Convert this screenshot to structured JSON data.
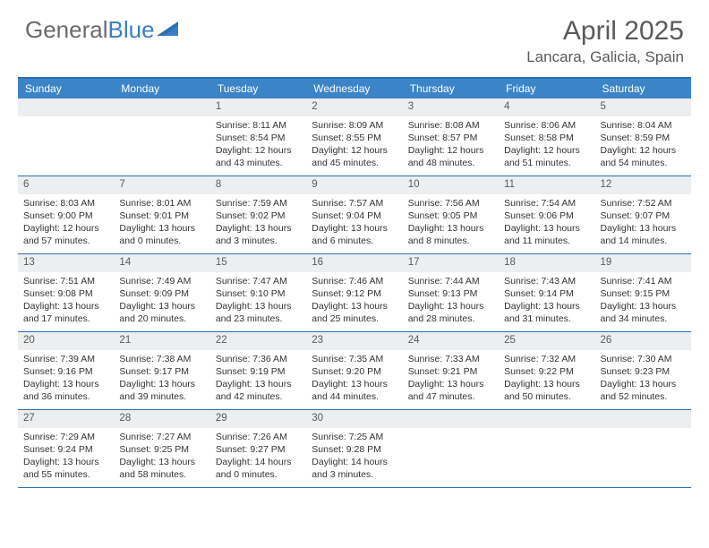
{
  "logo": {
    "part1": "General",
    "part2": "Blue"
  },
  "title": "April 2025",
  "location": "Lancara, Galicia, Spain",
  "colors": {
    "header_bg": "#3b84c8",
    "border": "#2a6fb5",
    "daynum_bg": "#eceeef",
    "text": "#333333",
    "logo_gray": "#6a6a6a",
    "logo_blue": "#3a7fc4"
  },
  "weekdays": [
    "Sunday",
    "Monday",
    "Tuesday",
    "Wednesday",
    "Thursday",
    "Friday",
    "Saturday"
  ],
  "weeks": [
    [
      null,
      null,
      {
        "n": "1",
        "sr": "8:11 AM",
        "ss": "8:54 PM",
        "dl": "12 hours and 43 minutes."
      },
      {
        "n": "2",
        "sr": "8:09 AM",
        "ss": "8:55 PM",
        "dl": "12 hours and 45 minutes."
      },
      {
        "n": "3",
        "sr": "8:08 AM",
        "ss": "8:57 PM",
        "dl": "12 hours and 48 minutes."
      },
      {
        "n": "4",
        "sr": "8:06 AM",
        "ss": "8:58 PM",
        "dl": "12 hours and 51 minutes."
      },
      {
        "n": "5",
        "sr": "8:04 AM",
        "ss": "8:59 PM",
        "dl": "12 hours and 54 minutes."
      }
    ],
    [
      {
        "n": "6",
        "sr": "8:03 AM",
        "ss": "9:00 PM",
        "dl": "12 hours and 57 minutes."
      },
      {
        "n": "7",
        "sr": "8:01 AM",
        "ss": "9:01 PM",
        "dl": "13 hours and 0 minutes."
      },
      {
        "n": "8",
        "sr": "7:59 AM",
        "ss": "9:02 PM",
        "dl": "13 hours and 3 minutes."
      },
      {
        "n": "9",
        "sr": "7:57 AM",
        "ss": "9:04 PM",
        "dl": "13 hours and 6 minutes."
      },
      {
        "n": "10",
        "sr": "7:56 AM",
        "ss": "9:05 PM",
        "dl": "13 hours and 8 minutes."
      },
      {
        "n": "11",
        "sr": "7:54 AM",
        "ss": "9:06 PM",
        "dl": "13 hours and 11 minutes."
      },
      {
        "n": "12",
        "sr": "7:52 AM",
        "ss": "9:07 PM",
        "dl": "13 hours and 14 minutes."
      }
    ],
    [
      {
        "n": "13",
        "sr": "7:51 AM",
        "ss": "9:08 PM",
        "dl": "13 hours and 17 minutes."
      },
      {
        "n": "14",
        "sr": "7:49 AM",
        "ss": "9:09 PM",
        "dl": "13 hours and 20 minutes."
      },
      {
        "n": "15",
        "sr": "7:47 AM",
        "ss": "9:10 PM",
        "dl": "13 hours and 23 minutes."
      },
      {
        "n": "16",
        "sr": "7:46 AM",
        "ss": "9:12 PM",
        "dl": "13 hours and 25 minutes."
      },
      {
        "n": "17",
        "sr": "7:44 AM",
        "ss": "9:13 PM",
        "dl": "13 hours and 28 minutes."
      },
      {
        "n": "18",
        "sr": "7:43 AM",
        "ss": "9:14 PM",
        "dl": "13 hours and 31 minutes."
      },
      {
        "n": "19",
        "sr": "7:41 AM",
        "ss": "9:15 PM",
        "dl": "13 hours and 34 minutes."
      }
    ],
    [
      {
        "n": "20",
        "sr": "7:39 AM",
        "ss": "9:16 PM",
        "dl": "13 hours and 36 minutes."
      },
      {
        "n": "21",
        "sr": "7:38 AM",
        "ss": "9:17 PM",
        "dl": "13 hours and 39 minutes."
      },
      {
        "n": "22",
        "sr": "7:36 AM",
        "ss": "9:19 PM",
        "dl": "13 hours and 42 minutes."
      },
      {
        "n": "23",
        "sr": "7:35 AM",
        "ss": "9:20 PM",
        "dl": "13 hours and 44 minutes."
      },
      {
        "n": "24",
        "sr": "7:33 AM",
        "ss": "9:21 PM",
        "dl": "13 hours and 47 minutes."
      },
      {
        "n": "25",
        "sr": "7:32 AM",
        "ss": "9:22 PM",
        "dl": "13 hours and 50 minutes."
      },
      {
        "n": "26",
        "sr": "7:30 AM",
        "ss": "9:23 PM",
        "dl": "13 hours and 52 minutes."
      }
    ],
    [
      {
        "n": "27",
        "sr": "7:29 AM",
        "ss": "9:24 PM",
        "dl": "13 hours and 55 minutes."
      },
      {
        "n": "28",
        "sr": "7:27 AM",
        "ss": "9:25 PM",
        "dl": "13 hours and 58 minutes."
      },
      {
        "n": "29",
        "sr": "7:26 AM",
        "ss": "9:27 PM",
        "dl": "14 hours and 0 minutes."
      },
      {
        "n": "30",
        "sr": "7:25 AM",
        "ss": "9:28 PM",
        "dl": "14 hours and 3 minutes."
      },
      null,
      null,
      null
    ]
  ],
  "labels": {
    "sunrise": "Sunrise:",
    "sunset": "Sunset:",
    "daylight": "Daylight:"
  }
}
